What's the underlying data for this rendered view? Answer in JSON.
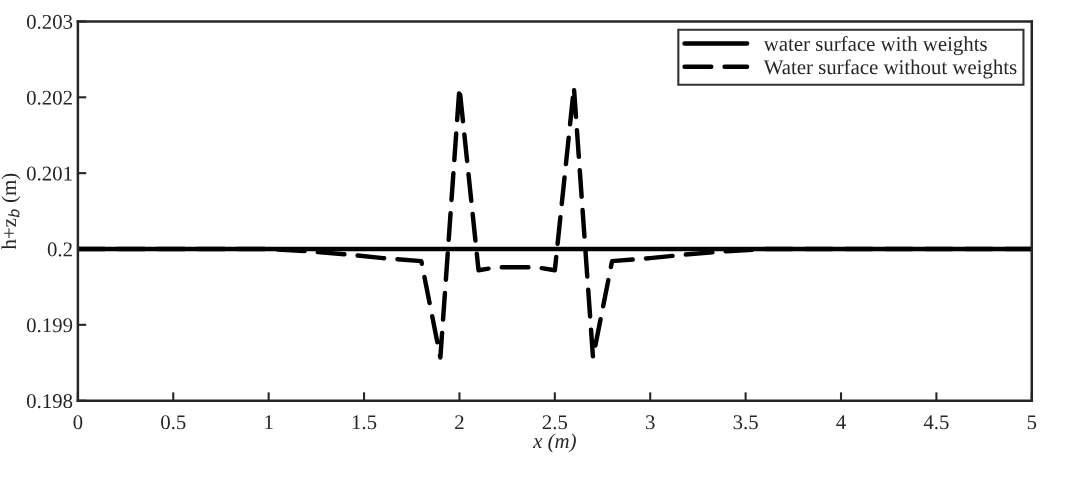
{
  "chart_data": {
    "type": "line",
    "xlabel": "x (m)",
    "ylabel": "h+z$_{b}$ (m)",
    "xlim": [
      0,
      5
    ],
    "ylim": [
      0.198,
      0.203
    ],
    "xticks": [
      0,
      0.5,
      1,
      1.5,
      2,
      2.5,
      3,
      3.5,
      4,
      4.5,
      5
    ],
    "yticks": [
      0.198,
      0.199,
      0.2,
      0.201,
      0.202,
      0.203
    ],
    "grid": false,
    "legend": "top right",
    "marker": "none",
    "series": [
      {
        "name": "water surface with weights",
        "color": "#000000",
        "line_style": "solid",
        "x": [
          0,
          5
        ],
        "values": [
          0.2,
          0.2
        ]
      },
      {
        "name": "Water surface without weights",
        "color": "#000000",
        "line_style": "dashed",
        "x": [
          0,
          0.5,
          1,
          1.2,
          1.4,
          1.6,
          1.8,
          1.9,
          2,
          2.1,
          2.2,
          2.4,
          2.5,
          2.6,
          2.7,
          2.8,
          3,
          3.2,
          3.4,
          3.6,
          4,
          4.5,
          5
        ],
        "values": [
          0.2,
          0.2,
          0.2,
          0.19997,
          0.19993,
          0.19988,
          0.19984,
          0.19857,
          0.20213,
          0.19972,
          0.19976,
          0.19976,
          0.19972,
          0.20213,
          0.19857,
          0.19984,
          0.19988,
          0.19993,
          0.19997,
          0.2,
          0.2,
          0.2,
          0.2
        ]
      }
    ]
  }
}
